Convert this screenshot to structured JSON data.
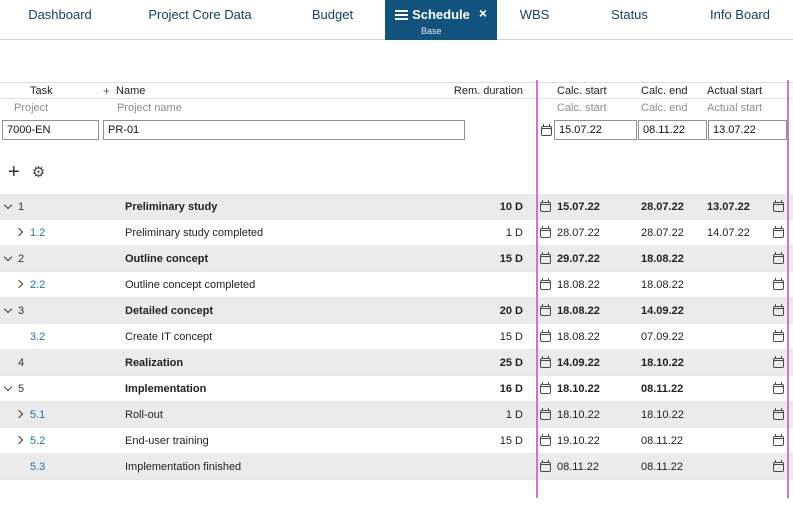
{
  "colors": {
    "tab-active": "#12537e",
    "splitter": "#c878c8",
    "link": "#2570b0",
    "row-alt": "#ebebeb"
  },
  "icons": {
    "close": "×",
    "add_column": "+",
    "add_task": "+",
    "settings": "⚙"
  },
  "tabs": [
    {
      "label": "Dashboard",
      "active": false
    },
    {
      "label": "Project Core Data",
      "active": false
    },
    {
      "label": "Budget",
      "active": false
    },
    {
      "label": "Schedule",
      "active": true,
      "subtitle": "Base"
    },
    {
      "label": "WBS",
      "active": false
    },
    {
      "label": "Status",
      "active": false
    },
    {
      "label": "Info Board",
      "active": false
    }
  ],
  "toolbar": {
    "add_icon": "+",
    "settings_icon": "⚙"
  },
  "table": {
    "headers": {
      "task": "Task",
      "name": "Name",
      "rem_duration": "Rem. duration",
      "calc_start": "Calc. start",
      "calc_end": "Calc. end",
      "actual_start": "Actual start"
    },
    "subheaders": {
      "project": "Project",
      "project_name": "Project name",
      "calc_start": "Calc. start",
      "calc_end": "Calc. end",
      "actual_start": "Actual start"
    },
    "project_row": {
      "id": "7000-EN",
      "name": "PR-01",
      "calc_start": "15.07.22",
      "calc_end": "08.11.22",
      "actual_start": "13.07.22"
    },
    "rows": [
      {
        "num": "1",
        "name": "Preliminary study",
        "rem": "10 D",
        "calc_start": "15.07.22",
        "calc_end": "28.07.22",
        "actual_start": "13.07.22",
        "bold": true,
        "chevron": "down",
        "level": 0
      },
      {
        "num": "1.2",
        "name": "Preliminary study completed",
        "rem": "1 D",
        "calc_start": "28.07.22",
        "calc_end": "28.07.22",
        "actual_start": "14.07.22",
        "bold": false,
        "chevron": "right",
        "level": 1
      },
      {
        "num": "2",
        "name": "Outline concept",
        "rem": "15 D",
        "calc_start": "29.07.22",
        "calc_end": "18.08.22",
        "actual_start": "",
        "bold": true,
        "chevron": "down",
        "level": 0
      },
      {
        "num": "2.2",
        "name": "Outline concept completed",
        "rem": "",
        "calc_start": "18.08.22",
        "calc_end": "18.08.22",
        "actual_start": "",
        "bold": false,
        "chevron": "right",
        "level": 1
      },
      {
        "num": "3",
        "name": "Detailed concept",
        "rem": "20 D",
        "calc_start": "18.08.22",
        "calc_end": "14.09.22",
        "actual_start": "",
        "bold": true,
        "chevron": "down",
        "level": 0
      },
      {
        "num": "3.2",
        "name": "Create IT concept",
        "rem": "15 D",
        "calc_start": "18.08.22",
        "calc_end": "07.09.22",
        "actual_start": "",
        "bold": false,
        "chevron": "none",
        "level": 1
      },
      {
        "num": "4",
        "name": "Realization",
        "rem": "25 D",
        "calc_start": "14.09.22",
        "calc_end": "18.10.22",
        "actual_start": "",
        "bold": true,
        "chevron": "none",
        "level": 0
      },
      {
        "num": "5",
        "name": "Implementation",
        "rem": "16 D",
        "calc_start": "18.10.22",
        "calc_end": "08.11.22",
        "actual_start": "",
        "bold": true,
        "chevron": "down",
        "level": 0
      },
      {
        "num": "5.1",
        "name": "Roll-out",
        "rem": "1 D",
        "calc_start": "18.10.22",
        "calc_end": "18.10.22",
        "actual_start": "",
        "bold": false,
        "chevron": "right",
        "level": 1
      },
      {
        "num": "5.2",
        "name": "End-user training",
        "rem": "15 D",
        "calc_start": "19.10.22",
        "calc_end": "08.11.22",
        "actual_start": "",
        "bold": false,
        "chevron": "right",
        "level": 1
      },
      {
        "num": "5.3",
        "name": "Implementation finished",
        "rem": "",
        "calc_start": "08.11.22",
        "calc_end": "08.11.22",
        "actual_start": "",
        "bold": false,
        "chevron": "none",
        "level": 1
      }
    ]
  }
}
